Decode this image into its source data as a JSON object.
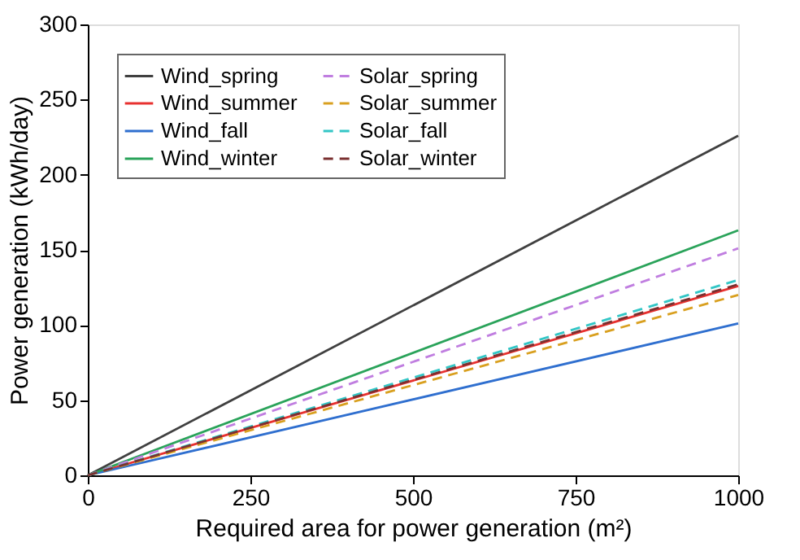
{
  "chart_data": {
    "type": "line",
    "xlabel": "Required area for power generation (m²)",
    "ylabel": "Power generation (kWh/day)",
    "x": [
      0,
      1000
    ],
    "xlim": [
      0,
      1000
    ],
    "xticks": [
      0,
      250,
      500,
      750,
      1000
    ],
    "ylim": [
      0,
      300
    ],
    "yticks": [
      0,
      50,
      100,
      150,
      200,
      250,
      300
    ],
    "grid": false,
    "legend": "top left",
    "marker": "none",
    "series": [
      {
        "name": "Wind_spring",
        "color": "#404040",
        "values": [
          0,
          226
        ],
        "line_style": "solid"
      },
      {
        "name": "Wind_summer",
        "color": "#e8312f",
        "values": [
          0,
          126
        ],
        "line_style": "solid"
      },
      {
        "name": "Wind_fall",
        "color": "#2f6fcf",
        "values": [
          0,
          101
        ],
        "line_style": "solid"
      },
      {
        "name": "Wind_winter",
        "color": "#2aa35a",
        "values": [
          0,
          163
        ],
        "line_style": "solid"
      },
      {
        "name": "Solar_spring",
        "color": "#c07ee0",
        "values": [
          0,
          151
        ],
        "line_style": "dashed"
      },
      {
        "name": "Solar_summer",
        "color": "#d9a020",
        "values": [
          0,
          120
        ],
        "line_style": "dashed"
      },
      {
        "name": "Solar_fall",
        "color": "#33c6c6",
        "values": [
          0,
          130
        ],
        "line_style": "dashed"
      },
      {
        "name": "Solar_winter",
        "color": "#7a3030",
        "values": [
          0,
          127
        ],
        "line_style": "dashed"
      }
    ]
  }
}
